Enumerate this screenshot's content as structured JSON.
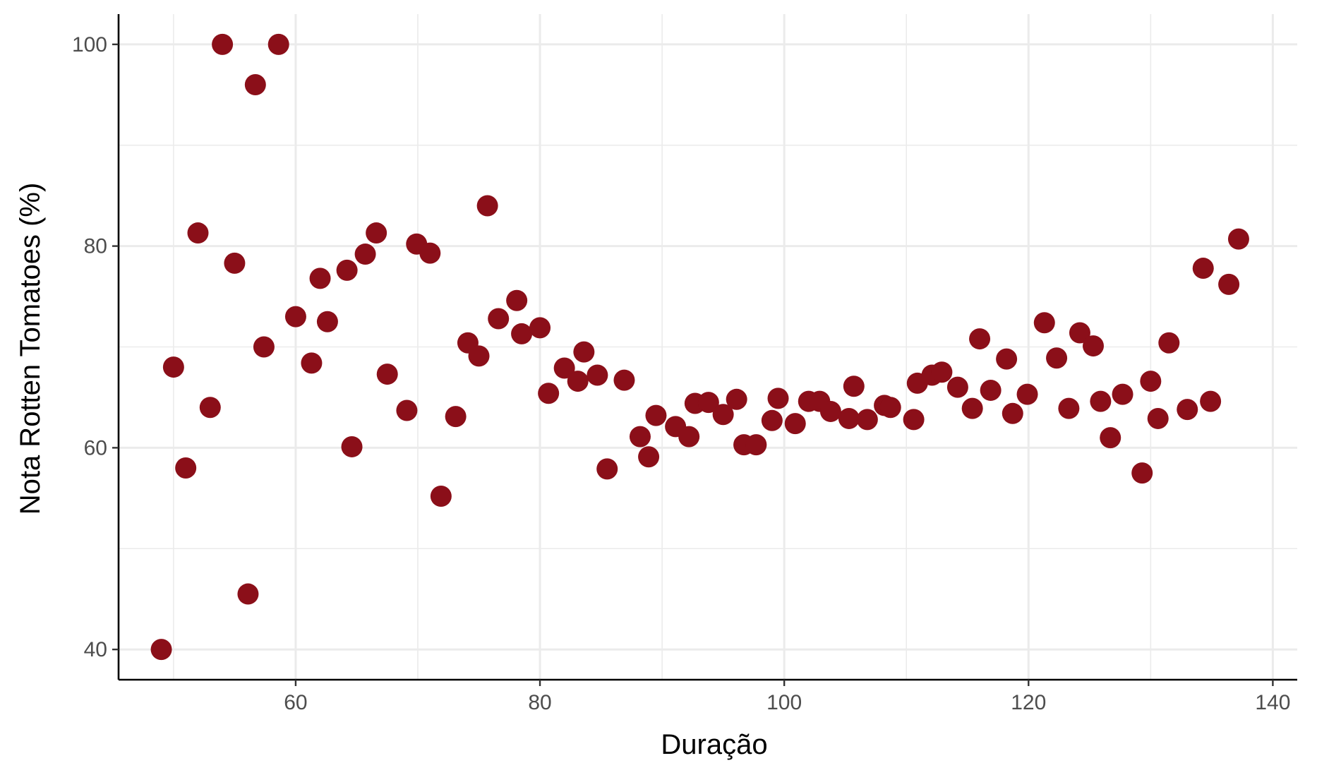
{
  "chart_data": {
    "type": "scatter",
    "xlabel": "Duração",
    "ylabel": "Nota Rotten Tomatoes (%)",
    "xlim": [
      45.5,
      142
    ],
    "ylim": [
      37,
      103
    ],
    "x_ticks": [
      60,
      80,
      100,
      120,
      140
    ],
    "y_ticks": [
      40,
      60,
      80,
      100
    ],
    "x_tick_labels": [
      "60",
      "80",
      "100",
      "120",
      "140"
    ],
    "y_tick_labels": [
      "40",
      "60",
      "80",
      "100"
    ],
    "grid": true,
    "point_color": "#8B0F19",
    "points": [
      {
        "x": 49.0,
        "y": 40.0
      },
      {
        "x": 50.0,
        "y": 68.0
      },
      {
        "x": 51.0,
        "y": 58.0
      },
      {
        "x": 52.0,
        "y": 81.3
      },
      {
        "x": 53.0,
        "y": 64.0
      },
      {
        "x": 54.0,
        "y": 100.0
      },
      {
        "x": 55.0,
        "y": 78.3
      },
      {
        "x": 56.1,
        "y": 45.5
      },
      {
        "x": 56.7,
        "y": 96.0
      },
      {
        "x": 57.4,
        "y": 70.0
      },
      {
        "x": 58.6,
        "y": 100.0
      },
      {
        "x": 60.0,
        "y": 73.0
      },
      {
        "x": 61.3,
        "y": 68.4
      },
      {
        "x": 62.0,
        "y": 76.8
      },
      {
        "x": 62.6,
        "y": 72.5
      },
      {
        "x": 64.2,
        "y": 77.6
      },
      {
        "x": 64.6,
        "y": 60.1
      },
      {
        "x": 65.7,
        "y": 79.2
      },
      {
        "x": 66.6,
        "y": 81.3
      },
      {
        "x": 67.5,
        "y": 67.3
      },
      {
        "x": 69.1,
        "y": 63.7
      },
      {
        "x": 69.9,
        "y": 80.2
      },
      {
        "x": 71.0,
        "y": 79.3
      },
      {
        "x": 71.9,
        "y": 55.2
      },
      {
        "x": 73.1,
        "y": 63.1
      },
      {
        "x": 74.1,
        "y": 70.4
      },
      {
        "x": 75.0,
        "y": 69.1
      },
      {
        "x": 75.7,
        "y": 84.0
      },
      {
        "x": 76.6,
        "y": 72.8
      },
      {
        "x": 78.1,
        "y": 74.6
      },
      {
        "x": 78.5,
        "y": 71.3
      },
      {
        "x": 80.0,
        "y": 71.9
      },
      {
        "x": 80.7,
        "y": 65.4
      },
      {
        "x": 82.0,
        "y": 67.9
      },
      {
        "x": 83.1,
        "y": 66.6
      },
      {
        "x": 83.6,
        "y": 69.5
      },
      {
        "x": 84.7,
        "y": 67.2
      },
      {
        "x": 85.5,
        "y": 57.9
      },
      {
        "x": 86.9,
        "y": 66.7
      },
      {
        "x": 88.2,
        "y": 61.1
      },
      {
        "x": 88.9,
        "y": 59.1
      },
      {
        "x": 89.5,
        "y": 63.2
      },
      {
        "x": 91.1,
        "y": 62.1
      },
      {
        "x": 92.2,
        "y": 61.1
      },
      {
        "x": 92.7,
        "y": 64.4
      },
      {
        "x": 93.8,
        "y": 64.5
      },
      {
        "x": 95.0,
        "y": 63.3
      },
      {
        "x": 96.1,
        "y": 64.8
      },
      {
        "x": 96.7,
        "y": 60.3
      },
      {
        "x": 97.7,
        "y": 60.3
      },
      {
        "x": 99.0,
        "y": 62.7
      },
      {
        "x": 99.5,
        "y": 64.9
      },
      {
        "x": 100.9,
        "y": 62.4
      },
      {
        "x": 102.0,
        "y": 64.6
      },
      {
        "x": 102.9,
        "y": 64.6
      },
      {
        "x": 103.8,
        "y": 63.6
      },
      {
        "x": 105.3,
        "y": 62.9
      },
      {
        "x": 105.7,
        "y": 66.1
      },
      {
        "x": 106.8,
        "y": 62.8
      },
      {
        "x": 108.2,
        "y": 64.2
      },
      {
        "x": 108.7,
        "y": 64.0
      },
      {
        "x": 110.6,
        "y": 62.8
      },
      {
        "x": 110.9,
        "y": 66.4
      },
      {
        "x": 112.1,
        "y": 67.2
      },
      {
        "x": 112.9,
        "y": 67.5
      },
      {
        "x": 114.2,
        "y": 66.0
      },
      {
        "x": 115.4,
        "y": 63.9
      },
      {
        "x": 116.0,
        "y": 70.8
      },
      {
        "x": 116.9,
        "y": 65.7
      },
      {
        "x": 118.2,
        "y": 68.8
      },
      {
        "x": 118.7,
        "y": 63.4
      },
      {
        "x": 119.9,
        "y": 65.3
      },
      {
        "x": 121.3,
        "y": 72.4
      },
      {
        "x": 122.3,
        "y": 68.9
      },
      {
        "x": 123.3,
        "y": 63.9
      },
      {
        "x": 124.2,
        "y": 71.4
      },
      {
        "x": 125.3,
        "y": 70.1
      },
      {
        "x": 125.9,
        "y": 64.6
      },
      {
        "x": 126.7,
        "y": 61.0
      },
      {
        "x": 127.7,
        "y": 65.3
      },
      {
        "x": 129.3,
        "y": 57.5
      },
      {
        "x": 130.0,
        "y": 66.6
      },
      {
        "x": 130.6,
        "y": 62.9
      },
      {
        "x": 131.5,
        "y": 70.4
      },
      {
        "x": 133.0,
        "y": 63.8
      },
      {
        "x": 134.3,
        "y": 77.8
      },
      {
        "x": 134.9,
        "y": 64.6
      },
      {
        "x": 136.4,
        "y": 76.2
      },
      {
        "x": 137.2,
        "y": 80.7
      }
    ]
  }
}
